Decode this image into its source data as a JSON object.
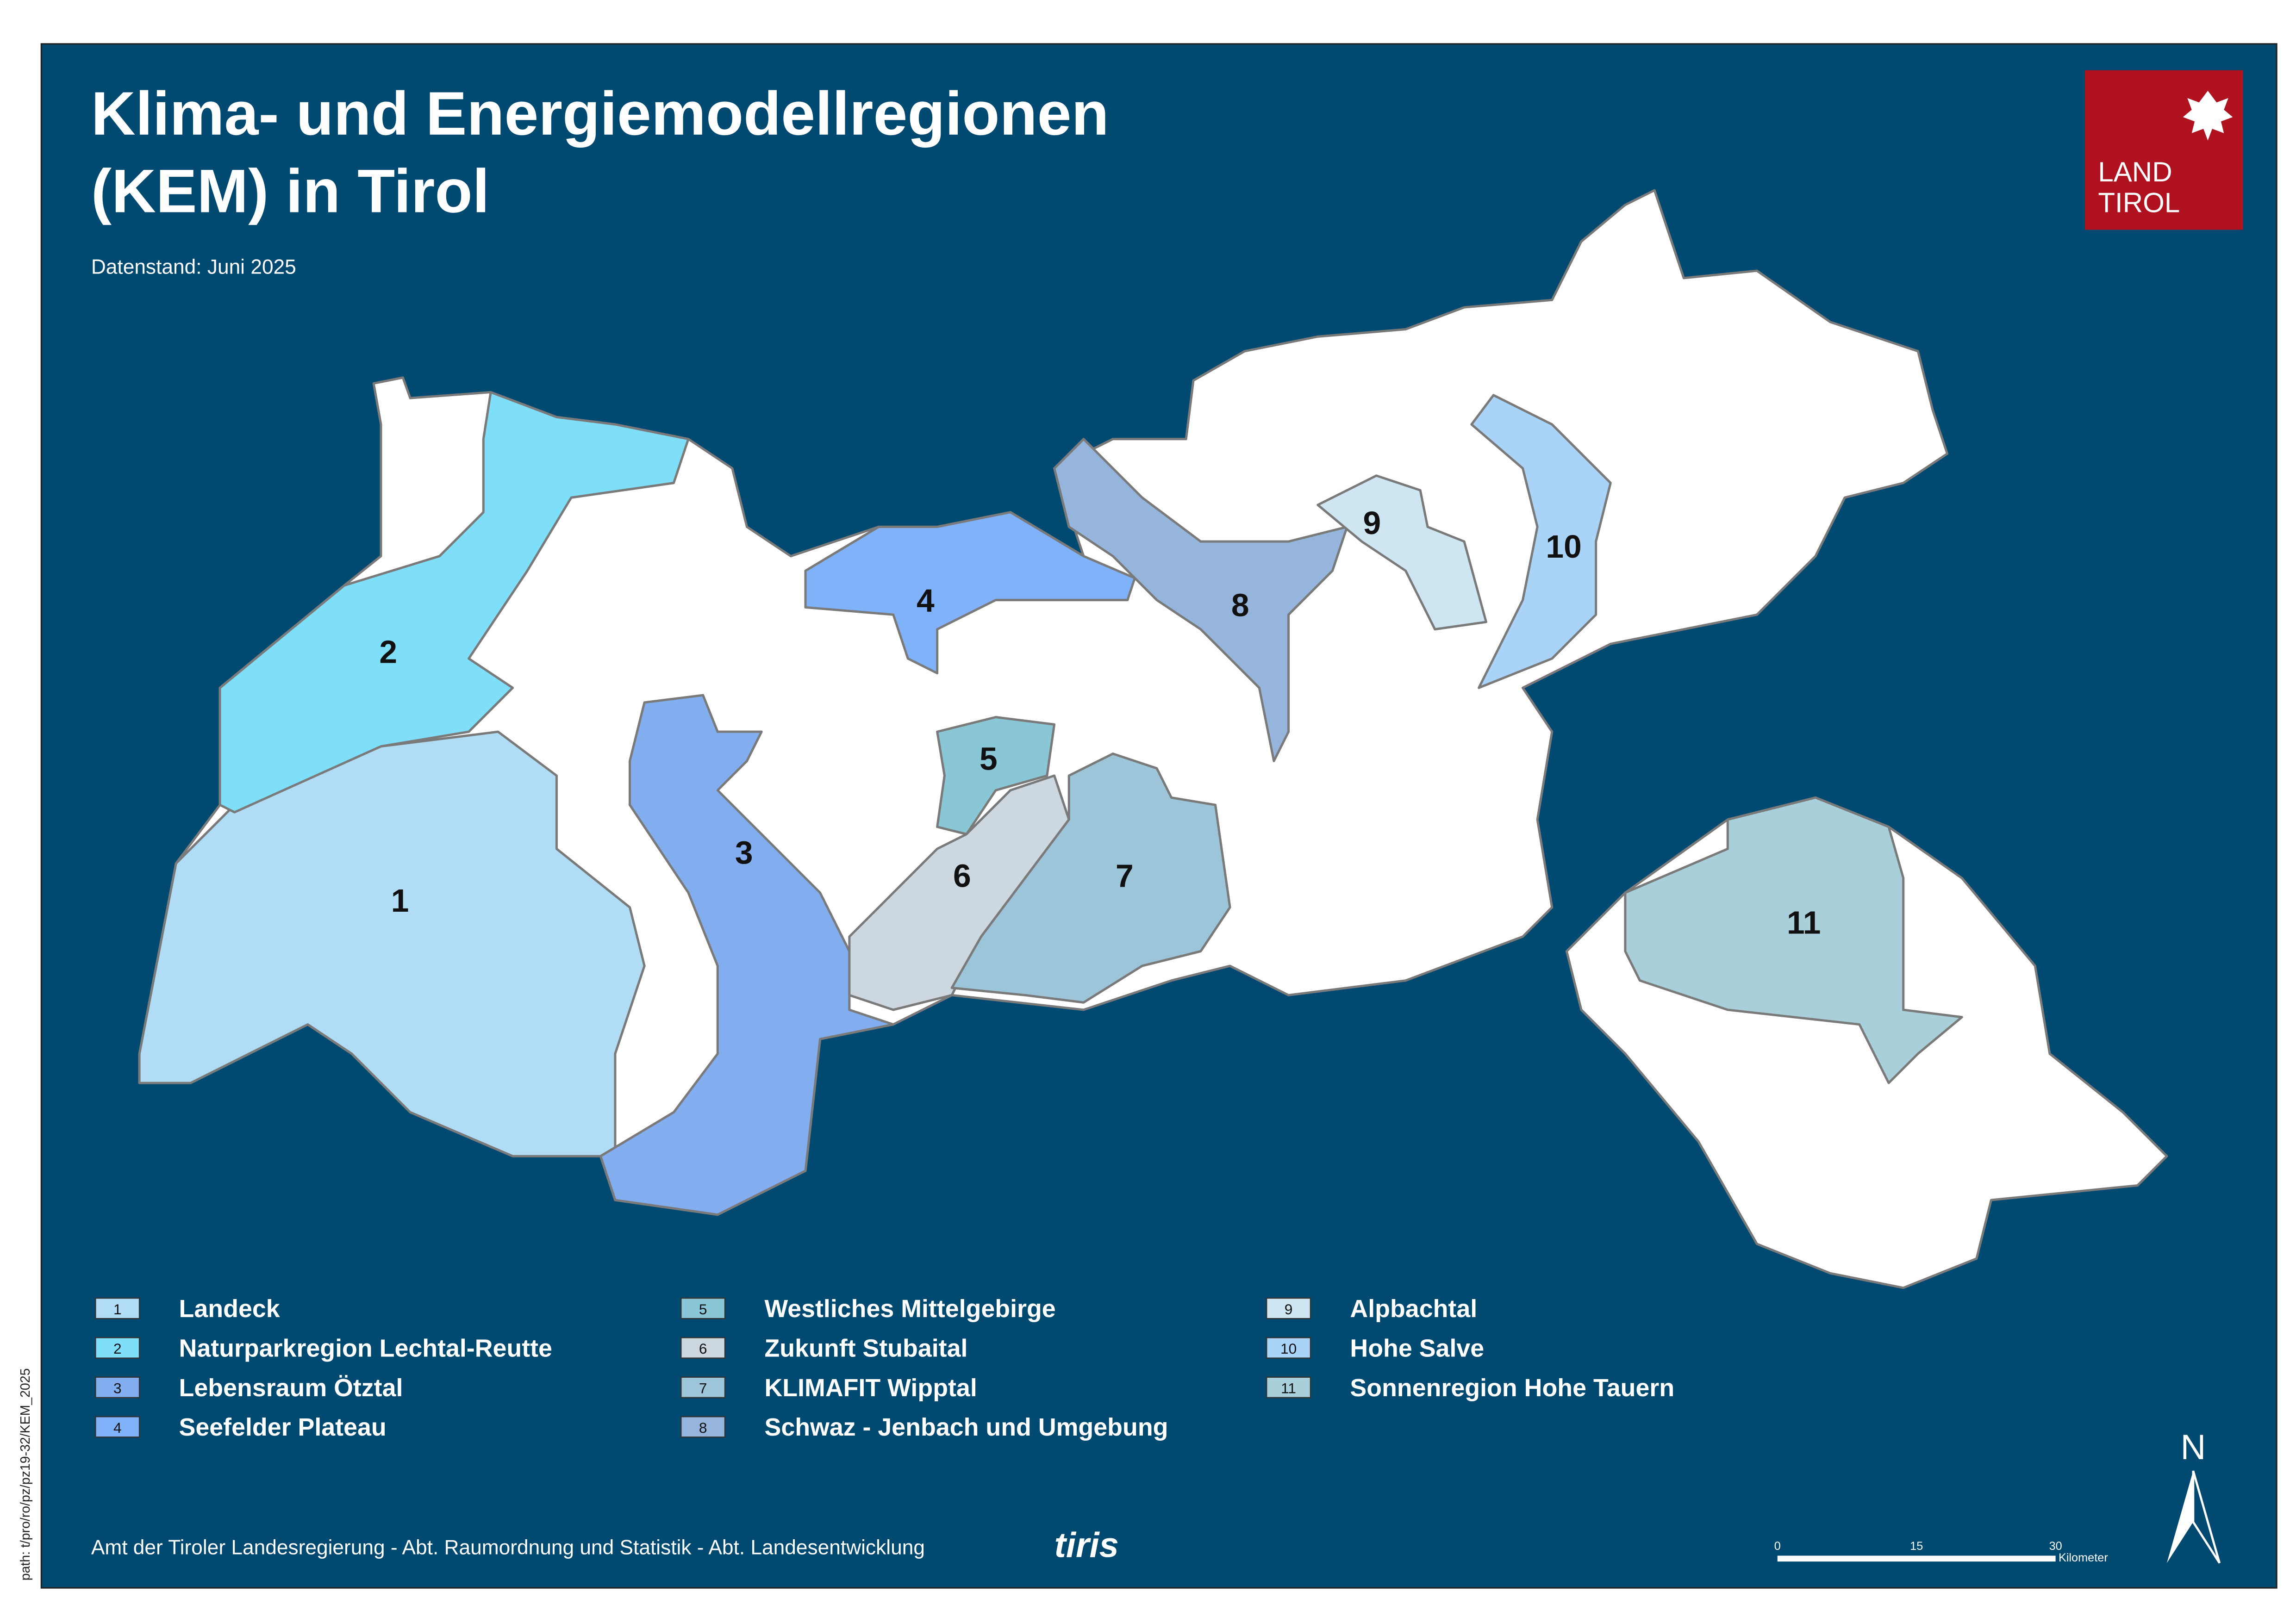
{
  "header": {
    "title": [
      "Klima- und Energiemodellregionen",
      "(KEM) in Tirol"
    ],
    "subtitle": "Datenstand: Juni 2025"
  },
  "logo": {
    "lines": [
      "LAND",
      "TIROL"
    ]
  },
  "regions": [
    {
      "number": "1",
      "name": "Landeck",
      "color": "#b0dcf6"
    },
    {
      "number": "2",
      "name": "Naturparkregion Lechtal-Reutte",
      "color": "#7fdff8"
    },
    {
      "number": "3",
      "name": "Lebensraum Ötztal",
      "color": "#82aef0"
    },
    {
      "number": "4",
      "name": "Seefelder Plateau",
      "color": "#80b2fa"
    },
    {
      "number": "5",
      "name": "Westliches Mittelgebirge",
      "color": "#8ac7d6"
    },
    {
      "number": "6",
      "name": "Zukunft Stubaital",
      "color": "#cdd7e0"
    },
    {
      "number": "7",
      "name": "KLIMAFIT Wipptal",
      "color": "#9cc5d9"
    },
    {
      "number": "8",
      "name": "Schwaz - Jenbach und Umgebung",
      "color": "#95b5dc"
    },
    {
      "number": "9",
      "name": "Alpbachtal",
      "color": "#cde6f1"
    },
    {
      "number": "10",
      "name": "Hohe Salve",
      "color": "#a9d3f7"
    },
    {
      "number": "11",
      "name": "Sonnenregion Hohe Tauern",
      "color": "#a9d0da"
    }
  ],
  "footer": {
    "text": "Amt der Tiroler Landesregierung - Abt. Raumordnung und Statistik - Abt. Landesentwicklung",
    "brand": "tiris"
  },
  "scale_bar": {
    "ticks": [
      "0",
      "15",
      "30"
    ],
    "unit": "Kilometer"
  },
  "north": "N",
  "path_note": "path: t/pro/ro/pz/pz19-32/KEM_2025"
}
